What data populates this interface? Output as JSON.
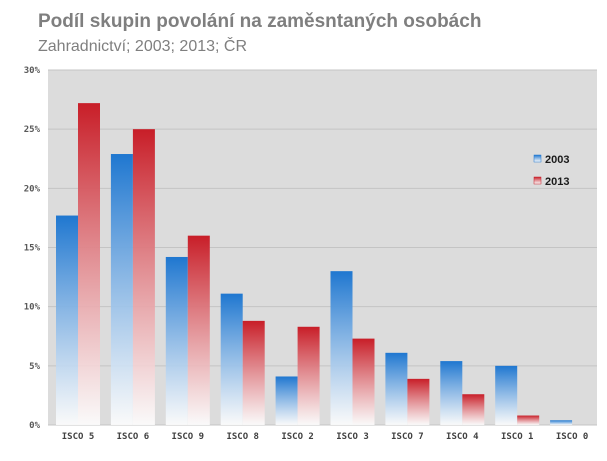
{
  "title": "Podíl skupin povolání na zaměsntaných osobách",
  "subtitle": "Zahradnictví; 2003; 2013; ČR",
  "colors": {
    "series_2003": "#1f77d0",
    "series_2013": "#c81e28",
    "plot_bg": "#dcdcdc",
    "grid": "#c4c4c4"
  },
  "chart_data": {
    "type": "bar",
    "categories": [
      "ISCO 5",
      "ISCO 6",
      "ISCO 9",
      "ISCO 8",
      "ISCO 2",
      "ISCO 3",
      "ISCO 7",
      "ISCO 4",
      "ISCO 1",
      "ISCO 0"
    ],
    "series": [
      {
        "name": "2003",
        "values": [
          17.7,
          22.9,
          14.2,
          11.1,
          4.1,
          13.0,
          6.1,
          5.4,
          5.0,
          0.4
        ]
      },
      {
        "name": "2013",
        "values": [
          27.2,
          25.0,
          16.0,
          8.8,
          8.3,
          7.3,
          3.9,
          2.6,
          0.8,
          0.0
        ]
      }
    ],
    "ylim": [
      0,
      30
    ],
    "yticks": [
      0,
      5,
      10,
      15,
      20,
      25,
      30
    ],
    "ytick_labels": [
      "0%",
      "5%",
      "10%",
      "15%",
      "20%",
      "25%",
      "30%"
    ],
    "xlabel": "",
    "ylabel": "",
    "grid": true,
    "legend_position": "right"
  }
}
